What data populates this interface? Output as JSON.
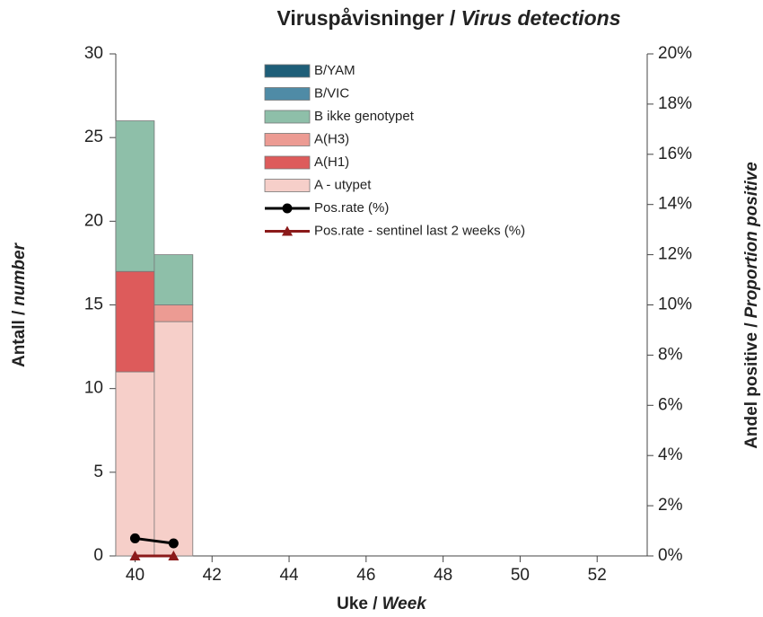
{
  "chart_data": {
    "type": "bar",
    "title": [
      "Viruspåvisninger /",
      "Virus detections"
    ],
    "xlabel": [
      "Uke /",
      "Week"
    ],
    "ylabel": [
      "Antall /",
      "number"
    ],
    "y2label": [
      "Andel positive /",
      "Proportion positive"
    ],
    "x": [
      40,
      41
    ],
    "stacked": true,
    "xlim": [
      39.5,
      53.3
    ],
    "xticks": [
      40,
      42,
      44,
      46,
      48,
      50,
      52
    ],
    "ylim": [
      0,
      30
    ],
    "yticks": [
      0,
      5,
      10,
      15,
      20,
      25,
      30
    ],
    "y2lim": [
      0,
      20
    ],
    "y2ticks": [
      {
        "value": 0,
        "label": "0%"
      },
      {
        "value": 2,
        "label": "2%"
      },
      {
        "value": 4,
        "label": "4%"
      },
      {
        "value": 6,
        "label": "6%"
      },
      {
        "value": 8,
        "label": "8%"
      },
      {
        "value": 10,
        "label": "10%"
      },
      {
        "value": 12,
        "label": "12%"
      },
      {
        "value": 14,
        "label": "14%"
      },
      {
        "value": 16,
        "label": "16%"
      },
      {
        "value": 18,
        "label": "18%"
      },
      {
        "value": 20,
        "label": "20%"
      }
    ],
    "series": [
      {
        "name": "A - utypet",
        "color": "#f6cfc9",
        "values": [
          11,
          14
        ]
      },
      {
        "name": "A(H1)",
        "color": "#dd5b5b",
        "values": [
          6,
          0
        ]
      },
      {
        "name": "A(H3)",
        "color": "#ec9b93",
        "values": [
          0,
          1
        ]
      },
      {
        "name": "B ikke genotypet",
        "color": "#8ebfa9",
        "values": [
          9,
          3
        ]
      },
      {
        "name": "B/VIC",
        "color": "#4f8ba6",
        "values": [
          0,
          0
        ]
      },
      {
        "name": "B/YAM",
        "color": "#1e5e78",
        "values": [
          0,
          0
        ]
      },
      {
        "name": "Pos.rate (%)",
        "color": "#000000",
        "type": "line",
        "marker": "circle",
        "axis": "y2",
        "values": [
          0.7,
          0.5
        ]
      },
      {
        "name": "Pos.rate - sentinel last 2 weeks (%)",
        "color": "#8b1a1a",
        "type": "line",
        "marker": "triangle",
        "axis": "y2",
        "values": [
          0,
          0
        ]
      }
    ]
  }
}
